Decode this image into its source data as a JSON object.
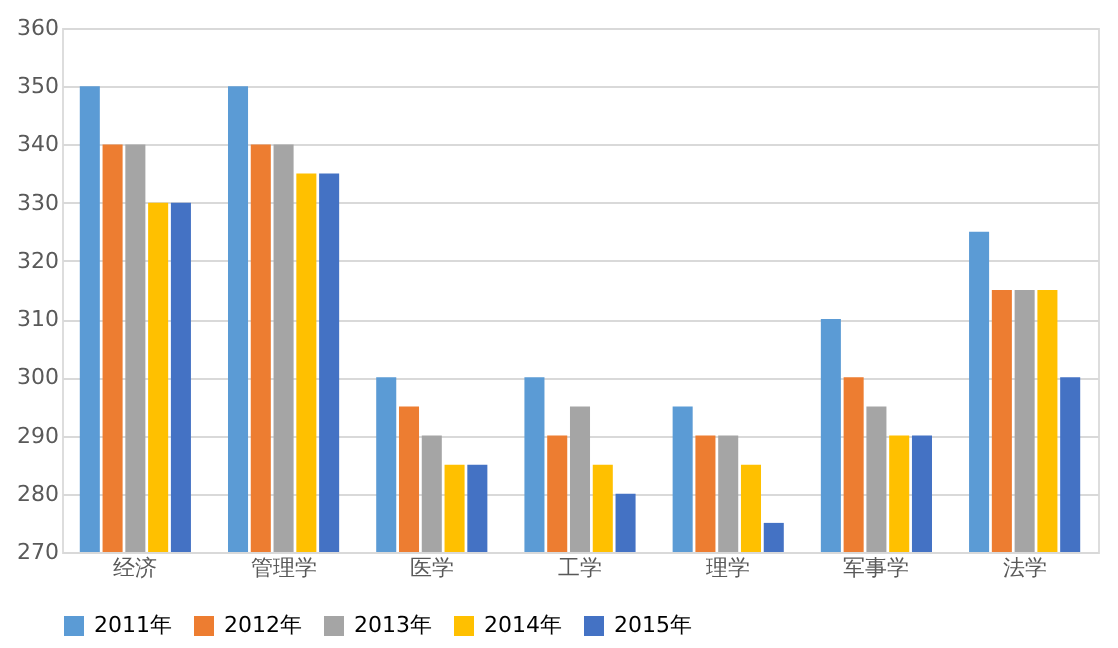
{
  "chart_data": {
    "type": "bar",
    "categories": [
      "经济",
      "管理学",
      "医学",
      "工学",
      "理学",
      "军事学",
      "法学"
    ],
    "series": [
      {
        "name": "2011年",
        "color": "#5b9bd5",
        "values": [
          350,
          350,
          300,
          300,
          295,
          310,
          325
        ]
      },
      {
        "name": "2012年",
        "color": "#ed7d31",
        "values": [
          340,
          340,
          295,
          290,
          290,
          300,
          315
        ]
      },
      {
        "name": "2013年",
        "color": "#a5a5a5",
        "values": [
          340,
          340,
          290,
          295,
          290,
          295,
          315
        ]
      },
      {
        "name": "2014年",
        "color": "#ffc000",
        "values": [
          330,
          335,
          285,
          285,
          285,
          290,
          315
        ]
      },
      {
        "name": "2015年",
        "color": "#4472c4",
        "values": [
          330,
          335,
          285,
          280,
          275,
          290,
          300
        ]
      }
    ],
    "ylim": [
      270,
      360
    ],
    "yticks": [
      270,
      280,
      290,
      300,
      310,
      320,
      330,
      340,
      350,
      360
    ],
    "grid": "y",
    "legend": "bottom"
  }
}
